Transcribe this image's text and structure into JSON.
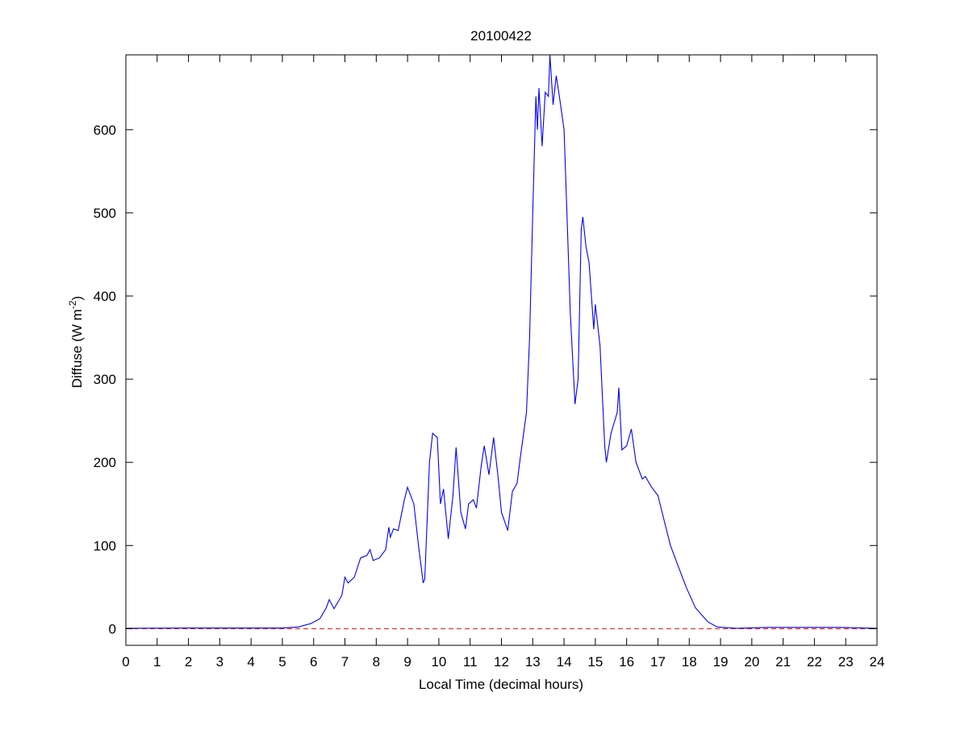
{
  "chart_data": {
    "type": "line",
    "title": "20100422",
    "xlabel": "Local Time (decimal hours)",
    "ylabel": "Diffuse (W m",
    "ylabel_sup": "-2",
    "ylabel_close": ")",
    "xlim": [
      0,
      24
    ],
    "ylim": [
      -20,
      690
    ],
    "xticks": [
      0,
      1,
      2,
      3,
      4,
      5,
      6,
      7,
      8,
      9,
      10,
      11,
      12,
      13,
      14,
      15,
      16,
      17,
      18,
      19,
      20,
      21,
      22,
      23,
      24
    ],
    "yticks": [
      0,
      100,
      200,
      300,
      400,
      500,
      600
    ],
    "grid": false,
    "colors": {
      "series": "#0000ff",
      "reference": "#ff0000"
    },
    "reference_line": {
      "y": 0,
      "style": "dashed"
    },
    "series": [
      {
        "x": [
          0,
          2,
          5,
          5.5,
          5.9,
          6.2,
          6.4,
          6.5,
          6.65,
          6.9,
          7.0,
          7.1,
          7.3,
          7.5,
          7.7,
          7.8,
          7.9,
          8.1,
          8.3,
          8.4,
          8.45,
          8.55,
          8.7,
          8.9,
          9.0,
          9.2,
          9.35,
          9.5,
          9.55,
          9.7,
          9.8,
          9.95,
          10.05,
          10.15,
          10.3,
          10.45,
          10.55,
          10.7,
          10.85,
          10.95,
          11.1,
          11.2,
          11.35,
          11.45,
          11.6,
          11.75,
          11.9,
          12.0,
          12.2,
          12.35,
          12.5,
          12.6,
          12.8,
          12.9,
          13.0,
          13.1,
          13.15,
          13.2,
          13.3,
          13.4,
          13.5,
          13.55,
          13.65,
          13.75,
          13.85,
          14.0,
          14.1,
          14.2,
          14.35,
          14.45,
          14.55,
          14.6,
          14.7,
          14.8,
          14.95,
          15.0,
          15.15,
          15.3,
          15.35,
          15.5,
          15.7,
          15.75,
          15.85,
          16.0,
          16.15,
          16.3,
          16.5,
          16.6,
          16.8,
          17.0,
          17.2,
          17.4,
          17.6,
          17.9,
          18.2,
          18.6,
          18.9,
          19.5,
          20.5,
          21.0,
          22.8,
          24
        ],
        "y": [
          0.5,
          0.8,
          0.8,
          2,
          6,
          12,
          25,
          35,
          24,
          40,
          62,
          55,
          62,
          85,
          88,
          95,
          82,
          85,
          95,
          122,
          110,
          120,
          118,
          155,
          170,
          150,
          100,
          55,
          60,
          200,
          235,
          230,
          150,
          168,
          108,
          160,
          218,
          140,
          120,
          150,
          155,
          145,
          195,
          220,
          185,
          230,
          180,
          140,
          118,
          165,
          175,
          205,
          260,
          350,
          500,
          640,
          600,
          650,
          580,
          645,
          640,
          690,
          630,
          665,
          640,
          600,
          490,
          380,
          270,
          300,
          480,
          495,
          460,
          440,
          360,
          390,
          340,
          220,
          200,
          235,
          260,
          290,
          215,
          220,
          240,
          200,
          180,
          183,
          170,
          160,
          130,
          100,
          80,
          50,
          25,
          8,
          2,
          0.5,
          1.5,
          1.5,
          1.5,
          0.5
        ]
      }
    ]
  }
}
